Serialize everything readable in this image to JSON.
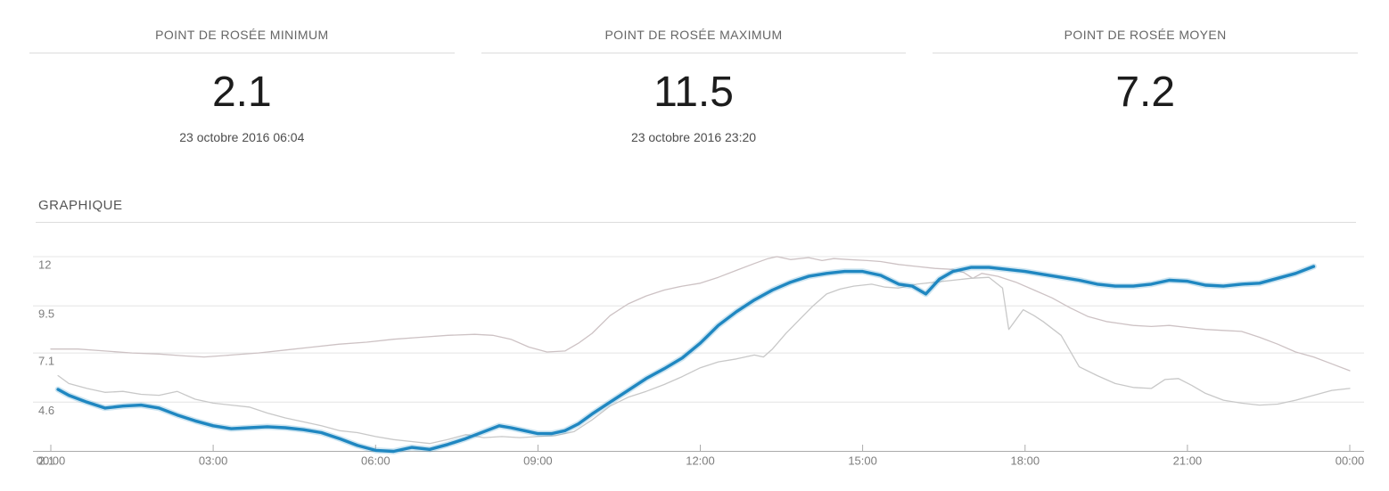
{
  "page": {
    "background": "#ffffff"
  },
  "stats_cards": [
    {
      "title": "POINT DE ROSÉE MINIMUM",
      "value": "2.1",
      "timestamp": "23 octobre 2016 06:04"
    },
    {
      "title": "POINT DE ROSÉE MAXIMUM",
      "value": "11.5",
      "timestamp": "23 octobre 2016 23:20"
    },
    {
      "title": "POINT DE ROSÉE MOYEN",
      "value": "7.2",
      "timestamp": ""
    }
  ],
  "graph_section": {
    "title": "GRAPHIQUE"
  },
  "chart_data": {
    "type": "line",
    "title": "GRAPHIQUE",
    "grid": "horizontal",
    "legend": "none",
    "x_axis": {
      "range_minutes": [
        0,
        1440
      ],
      "tick_minutes": [
        0,
        180,
        360,
        540,
        720,
        900,
        1080,
        1260,
        1440
      ],
      "tick_labels": [
        "00:00",
        "03:00",
        "06:00",
        "09:00",
        "12:00",
        "15:00",
        "18:00",
        "21:00",
        "00:00"
      ]
    },
    "y_axis": {
      "range": [
        2.1,
        12
      ],
      "tick_values": [
        2.1,
        4.6,
        7.1,
        9.5,
        12
      ],
      "tick_labels": [
        "2.1",
        "4.6",
        "7.1",
        "9.5",
        "12"
      ]
    },
    "colors": {
      "grid": "#e4e4e4",
      "axis": "#ababab",
      "tick_text": "#7d7d7d"
    },
    "series": [
      {
        "name": "point-de-rosee",
        "color": "#1f87c1",
        "halo": "rgba(31,135,193,0.22)",
        "width": 3.4,
        "points": [
          [
            8,
            5.25
          ],
          [
            20,
            4.95
          ],
          [
            40,
            4.6
          ],
          [
            60,
            4.3
          ],
          [
            80,
            4.4
          ],
          [
            100,
            4.45
          ],
          [
            120,
            4.3
          ],
          [
            140,
            3.95
          ],
          [
            160,
            3.65
          ],
          [
            180,
            3.4
          ],
          [
            200,
            3.25
          ],
          [
            220,
            3.3
          ],
          [
            240,
            3.35
          ],
          [
            260,
            3.3
          ],
          [
            280,
            3.2
          ],
          [
            300,
            3.05
          ],
          [
            320,
            2.75
          ],
          [
            340,
            2.4
          ],
          [
            360,
            2.15
          ],
          [
            380,
            2.1
          ],
          [
            400,
            2.3
          ],
          [
            420,
            2.2
          ],
          [
            440,
            2.45
          ],
          [
            460,
            2.75
          ],
          [
            480,
            3.1
          ],
          [
            497,
            3.4
          ],
          [
            510,
            3.3
          ],
          [
            525,
            3.15
          ],
          [
            540,
            3.0
          ],
          [
            555,
            3.0
          ],
          [
            570,
            3.15
          ],
          [
            585,
            3.5
          ],
          [
            600,
            4.0
          ],
          [
            620,
            4.6
          ],
          [
            640,
            5.2
          ],
          [
            660,
            5.8
          ],
          [
            680,
            6.3
          ],
          [
            700,
            6.85
          ],
          [
            720,
            7.6
          ],
          [
            740,
            8.5
          ],
          [
            760,
            9.2
          ],
          [
            780,
            9.8
          ],
          [
            800,
            10.3
          ],
          [
            820,
            10.7
          ],
          [
            840,
            11.0
          ],
          [
            860,
            11.15
          ],
          [
            880,
            11.25
          ],
          [
            900,
            11.25
          ],
          [
            920,
            11.05
          ],
          [
            940,
            10.6
          ],
          [
            955,
            10.5
          ],
          [
            970,
            10.1
          ],
          [
            985,
            10.85
          ],
          [
            1000,
            11.25
          ],
          [
            1020,
            11.45
          ],
          [
            1040,
            11.45
          ],
          [
            1060,
            11.35
          ],
          [
            1080,
            11.25
          ],
          [
            1100,
            11.1
          ],
          [
            1120,
            10.95
          ],
          [
            1140,
            10.8
          ],
          [
            1160,
            10.6
          ],
          [
            1180,
            10.5
          ],
          [
            1200,
            10.5
          ],
          [
            1220,
            10.6
          ],
          [
            1240,
            10.8
          ],
          [
            1260,
            10.75
          ],
          [
            1280,
            10.55
          ],
          [
            1300,
            10.5
          ],
          [
            1320,
            10.6
          ],
          [
            1340,
            10.65
          ],
          [
            1360,
            10.9
          ],
          [
            1380,
            11.15
          ],
          [
            1400,
            11.5
          ]
        ]
      },
      {
        "name": "reference-haute",
        "color": "#cdc2c4",
        "width": 1.3,
        "points": [
          [
            0,
            7.3
          ],
          [
            30,
            7.3
          ],
          [
            60,
            7.2
          ],
          [
            90,
            7.1
          ],
          [
            120,
            7.05
          ],
          [
            150,
            6.95
          ],
          [
            170,
            6.9
          ],
          [
            200,
            7.0
          ],
          [
            230,
            7.1
          ],
          [
            260,
            7.25
          ],
          [
            290,
            7.4
          ],
          [
            320,
            7.55
          ],
          [
            350,
            7.65
          ],
          [
            380,
            7.8
          ],
          [
            410,
            7.9
          ],
          [
            440,
            8.0
          ],
          [
            470,
            8.05
          ],
          [
            490,
            8.0
          ],
          [
            510,
            7.8
          ],
          [
            530,
            7.4
          ],
          [
            550,
            7.15
          ],
          [
            570,
            7.2
          ],
          [
            585,
            7.6
          ],
          [
            600,
            8.1
          ],
          [
            620,
            9.0
          ],
          [
            640,
            9.6
          ],
          [
            660,
            10.0
          ],
          [
            680,
            10.3
          ],
          [
            700,
            10.5
          ],
          [
            720,
            10.65
          ],
          [
            740,
            10.95
          ],
          [
            760,
            11.3
          ],
          [
            780,
            11.65
          ],
          [
            795,
            11.9
          ],
          [
            805,
            12.0
          ],
          [
            820,
            11.85
          ],
          [
            840,
            11.95
          ],
          [
            855,
            11.8
          ],
          [
            868,
            11.9
          ],
          [
            885,
            11.85
          ],
          [
            905,
            11.8
          ],
          [
            920,
            11.75
          ],
          [
            940,
            11.6
          ],
          [
            960,
            11.5
          ],
          [
            980,
            11.4
          ],
          [
            1000,
            11.35
          ],
          [
            1012,
            11.2
          ],
          [
            1022,
            10.9
          ],
          [
            1032,
            11.15
          ],
          [
            1050,
            11.0
          ],
          [
            1070,
            10.7
          ],
          [
            1090,
            10.3
          ],
          [
            1110,
            9.9
          ],
          [
            1130,
            9.4
          ],
          [
            1150,
            8.95
          ],
          [
            1170,
            8.7
          ],
          [
            1185,
            8.6
          ],
          [
            1200,
            8.5
          ],
          [
            1220,
            8.45
          ],
          [
            1240,
            8.5
          ],
          [
            1260,
            8.4
          ],
          [
            1280,
            8.3
          ],
          [
            1300,
            8.25
          ],
          [
            1320,
            8.2
          ],
          [
            1340,
            7.9
          ],
          [
            1360,
            7.55
          ],
          [
            1380,
            7.15
          ],
          [
            1400,
            6.9
          ],
          [
            1420,
            6.55
          ],
          [
            1440,
            6.2
          ]
        ]
      },
      {
        "name": "reference-basse",
        "color": "#c8c8c8",
        "width": 1.3,
        "points": [
          [
            8,
            5.95
          ],
          [
            20,
            5.55
          ],
          [
            40,
            5.3
          ],
          [
            60,
            5.1
          ],
          [
            80,
            5.15
          ],
          [
            100,
            5.0
          ],
          [
            120,
            4.95
          ],
          [
            140,
            5.15
          ],
          [
            160,
            4.75
          ],
          [
            180,
            4.55
          ],
          [
            200,
            4.45
          ],
          [
            220,
            4.35
          ],
          [
            240,
            4.05
          ],
          [
            260,
            3.8
          ],
          [
            280,
            3.6
          ],
          [
            300,
            3.4
          ],
          [
            320,
            3.15
          ],
          [
            340,
            3.05
          ],
          [
            360,
            2.85
          ],
          [
            380,
            2.7
          ],
          [
            400,
            2.6
          ],
          [
            420,
            2.5
          ],
          [
            440,
            2.7
          ],
          [
            460,
            2.95
          ],
          [
            480,
            2.8
          ],
          [
            500,
            2.85
          ],
          [
            520,
            2.8
          ],
          [
            540,
            2.85
          ],
          [
            560,
            2.9
          ],
          [
            580,
            3.1
          ],
          [
            600,
            3.7
          ],
          [
            620,
            4.4
          ],
          [
            640,
            4.85
          ],
          [
            660,
            5.15
          ],
          [
            680,
            5.5
          ],
          [
            700,
            5.9
          ],
          [
            720,
            6.35
          ],
          [
            740,
            6.65
          ],
          [
            760,
            6.8
          ],
          [
            780,
            7.0
          ],
          [
            790,
            6.9
          ],
          [
            800,
            7.3
          ],
          [
            815,
            8.1
          ],
          [
            830,
            8.8
          ],
          [
            845,
            9.5
          ],
          [
            860,
            10.1
          ],
          [
            875,
            10.35
          ],
          [
            890,
            10.5
          ],
          [
            910,
            10.6
          ],
          [
            925,
            10.45
          ],
          [
            940,
            10.4
          ],
          [
            960,
            10.6
          ],
          [
            980,
            10.7
          ],
          [
            1000,
            10.8
          ],
          [
            1020,
            10.9
          ],
          [
            1040,
            10.95
          ],
          [
            1055,
            10.4
          ],
          [
            1062,
            8.3
          ],
          [
            1078,
            9.3
          ],
          [
            1090,
            9.0
          ],
          [
            1100,
            8.7
          ],
          [
            1120,
            8.0
          ],
          [
            1140,
            6.4
          ],
          [
            1160,
            5.95
          ],
          [
            1180,
            5.55
          ],
          [
            1200,
            5.35
          ],
          [
            1220,
            5.3
          ],
          [
            1235,
            5.75
          ],
          [
            1250,
            5.8
          ],
          [
            1265,
            5.45
          ],
          [
            1280,
            5.05
          ],
          [
            1300,
            4.7
          ],
          [
            1320,
            4.55
          ],
          [
            1340,
            4.45
          ],
          [
            1360,
            4.5
          ],
          [
            1380,
            4.7
          ],
          [
            1400,
            4.95
          ],
          [
            1420,
            5.2
          ],
          [
            1440,
            5.3
          ]
        ]
      }
    ]
  }
}
